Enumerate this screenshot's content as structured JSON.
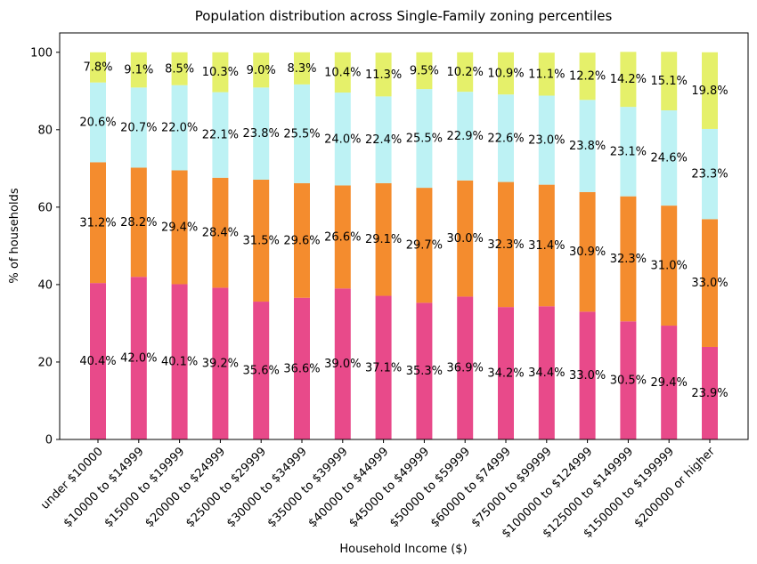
{
  "chart_data": {
    "type": "bar",
    "stacked": true,
    "title": "Population distribution across Single-Family zoning percentiles",
    "xlabel": "Household Income ($)",
    "ylabel": "% of households",
    "ylim": [
      0,
      105
    ],
    "yticks": [
      0,
      20,
      40,
      60,
      80,
      100
    ],
    "categories": [
      "under $10000",
      "$10000 to $14999",
      "$15000 to $19999",
      "$20000 to $24999",
      "$25000 to $29999",
      "$30000 to $34999",
      "$35000 to $39999",
      "$40000 to $44999",
      "$45000 to $49999",
      "$50000 to $59999",
      "$60000 to $74999",
      "$75000 to $99999",
      "$100000 to $124999",
      "$125000 to $149999",
      "$150000 to $199999",
      "$200000 or higher"
    ],
    "series": [
      {
        "color": "#e84a8a",
        "values": [
          40.4,
          42.0,
          40.1,
          39.2,
          35.6,
          36.6,
          39.0,
          37.1,
          35.3,
          36.9,
          34.2,
          34.4,
          33.0,
          30.5,
          29.4,
          23.9
        ],
        "labels": [
          "40.4%",
          "42.0%",
          "40.1%",
          "39.2%",
          "35.6%",
          "36.6%",
          "39.0%",
          "37.1%",
          "35.3%",
          "36.9%",
          "34.2%",
          "34.4%",
          "33.0%",
          "30.5%",
          "29.4%",
          "23.9%"
        ]
      },
      {
        "color": "#f48c2e",
        "values": [
          31.2,
          28.2,
          29.4,
          28.4,
          31.5,
          29.6,
          26.6,
          29.1,
          29.7,
          30.0,
          32.3,
          31.4,
          30.9,
          32.3,
          31.0,
          33.0
        ],
        "labels": [
          "31.2%",
          "28.2%",
          "29.4%",
          "28.4%",
          "31.5%",
          "29.6%",
          "26.6%",
          "29.1%",
          "29.7%",
          "30.0%",
          "32.3%",
          "31.4%",
          "30.9%",
          "32.3%",
          "31.0%",
          "33.0%"
        ]
      },
      {
        "color": "#bdf2f4",
        "values": [
          20.6,
          20.7,
          22.0,
          22.1,
          23.8,
          25.5,
          24.0,
          22.4,
          25.5,
          22.9,
          22.6,
          23.0,
          23.8,
          23.1,
          24.6,
          23.3
        ],
        "labels": [
          "20.6%",
          "20.7%",
          "22.0%",
          "22.1%",
          "23.8%",
          "25.5%",
          "24.0%",
          "22.4%",
          "25.5%",
          "22.9%",
          "22.6%",
          "23.0%",
          "23.8%",
          "23.1%",
          "24.6%",
          "23.3%"
        ]
      },
      {
        "color": "#e5f06a",
        "values": [
          7.8,
          9.1,
          8.5,
          10.3,
          9.0,
          8.3,
          10.4,
          11.3,
          9.5,
          10.2,
          10.9,
          11.1,
          12.2,
          14.2,
          15.1,
          19.8
        ],
        "labels": [
          "7.8%",
          "9.1%",
          "8.5%",
          "10.3%",
          "9.0%",
          "8.3%",
          "10.4%",
          "11.3%",
          "9.5%",
          "10.2%",
          "10.9%",
          "11.1%",
          "12.2%",
          "14.2%",
          "15.1%",
          "19.8%"
        ]
      }
    ],
    "grid": false,
    "legend": "none"
  }
}
